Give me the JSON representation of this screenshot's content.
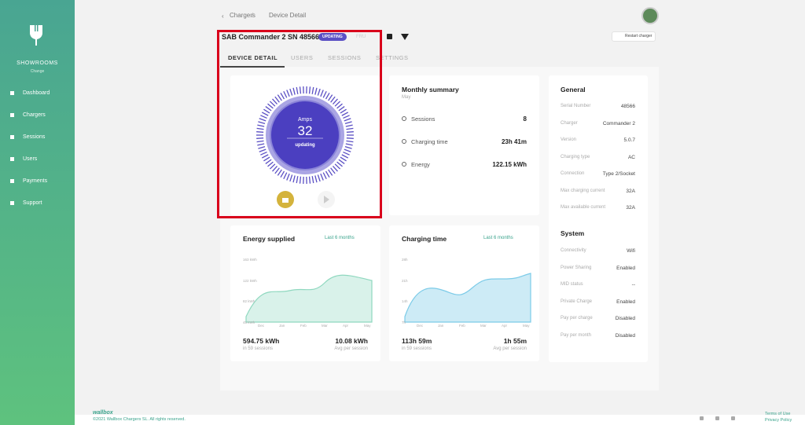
{
  "sidebar": {
    "brand": "SHOWROOMS",
    "brand_sub": "Change",
    "nav": [
      "Dashboard",
      "Chargers",
      "Sessions",
      "Users",
      "Payments",
      "Support"
    ]
  },
  "breadcrumb": [
    "Chargers",
    "/",
    "Device Detail"
  ],
  "header": {
    "title": "SAB Commander 2 SN 48566",
    "badge": "UPDATING",
    "extra": "FRU",
    "restart": "Restart charger"
  },
  "tabs": [
    "DEVICE DETAIL",
    "USERS",
    "SESSIONS",
    "SETTINGS"
  ],
  "gauge": {
    "label": "Amps",
    "value": "32",
    "status": "updating"
  },
  "monthly": {
    "title": "Monthly summary",
    "month": "May",
    "rows": [
      [
        "Sessions",
        "8"
      ],
      [
        "Charging time",
        "23h 41m"
      ],
      [
        "Energy",
        "122.15  kWh"
      ]
    ]
  },
  "general": {
    "title": "General",
    "rows": [
      [
        "Serial Number",
        "48566"
      ],
      [
        "Charger",
        "Commander 2"
      ],
      [
        "Version",
        "5.0.7"
      ],
      [
        "Charging type",
        "AC"
      ],
      [
        "Connection",
        "Type 2/Socket"
      ],
      [
        "Max charging current",
        "32A"
      ],
      [
        "Max available current",
        "32A"
      ]
    ]
  },
  "system": {
    "title": "System",
    "rows": [
      [
        "Connectivity",
        "Wifi"
      ],
      [
        "Power Sharing",
        "Enabled"
      ],
      [
        "MID status",
        "--"
      ],
      [
        "Private Charge",
        "Enabled"
      ],
      [
        "Pay per charge",
        "Disabled"
      ],
      [
        "Pay per month",
        "Disabled"
      ]
    ]
  },
  "charts": [
    {
      "title": "Energy supplied",
      "range": "Last 6 months",
      "yticks": [
        "163 kWh",
        "122 kWh",
        "82 kWh",
        "45 kWh"
      ],
      "xticks": [
        "Dec",
        "Jan",
        "Feb",
        "Mar",
        "Apr",
        "May"
      ],
      "total": "594.75 kWh",
      "total_sub": "in 59 sessions",
      "avg": "10.08 kWh",
      "avg_sub": "Avg per session"
    },
    {
      "title": "Charging time",
      "range": "Last 6 months",
      "yticks": [
        "28h",
        "21h",
        "14h",
        "7h"
      ],
      "xticks": [
        "Dec",
        "Jan",
        "Feb",
        "Mar",
        "Apr",
        "May"
      ],
      "total": "113h 59m",
      "total_sub": "in 59 sessions",
      "avg": "1h 55m",
      "avg_sub": "Avg per session"
    }
  ],
  "footer": {
    "logo": "wallbox",
    "copyright": "©2021 Wallbox Chargers SL. All rights reserved.",
    "links": [
      "Terms of Use",
      "Privacy Policy"
    ]
  }
}
